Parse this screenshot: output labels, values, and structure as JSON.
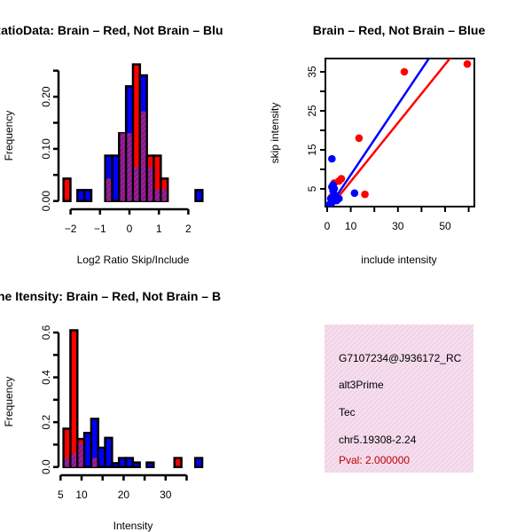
{
  "colors": {
    "red": "#ff0000",
    "blue": "#0000ff",
    "overlap": "#8b1a8b",
    "pval": "#bb0000",
    "panel_bg": "#f8d8ee"
  },
  "chart_data": [
    {
      "type": "bar",
      "title": "RatioData: Brain – Red, Not Brain – Blu",
      "xlabel": "Log2 Ratio Skip/Include",
      "ylabel": "Frequency",
      "xticks": [
        -2,
        -1,
        0,
        1,
        2
      ],
      "xtick_labels": [
        "−2",
        "−1",
        "0",
        "1",
        "2"
      ],
      "yticks": [
        0,
        0.05,
        0.1,
        0.15,
        0.2,
        0.25
      ],
      "ytick_labels": [
        "0.00",
        "",
        "0.10",
        "",
        "0.20",
        ""
      ],
      "bin_start": -2.24,
      "bin_width": 0.236,
      "series": [
        {
          "name": "Brain",
          "color": "red",
          "values": [
            0.043,
            0,
            0,
            0,
            0,
            0,
            0.043,
            0,
            0.13,
            0.13,
            0.262,
            0.172,
            0.087,
            0.087,
            0.043,
            0,
            0,
            0,
            0,
            0
          ]
        },
        {
          "name": "Not Brain",
          "color": "blue",
          "values": [
            0,
            0,
            0.021,
            0.021,
            0,
            0,
            0.087,
            0.087,
            0.13,
            0.22,
            0.065,
            0.241,
            0.065,
            0.022,
            0.022,
            0,
            0,
            0,
            0,
            0.021
          ]
        }
      ]
    },
    {
      "type": "scatter",
      "title": "Brain – Red, Not Brain – Blue",
      "xlabel": "include intensity",
      "ylabel": "skip intensity",
      "xlim": [
        -0.7,
        62
      ],
      "ylim": [
        0,
        38
      ],
      "xticks": [
        0,
        10,
        20,
        30,
        40,
        50,
        60
      ],
      "xtick_labels": [
        "0",
        "10",
        "",
        "30",
        "",
        "50",
        ""
      ],
      "yticks": [
        5,
        10,
        15,
        20,
        25,
        30,
        35
      ],
      "ytick_labels": [
        "5",
        "",
        "15",
        "",
        "25",
        "",
        "35"
      ],
      "series": [
        {
          "name": "Brain",
          "color": "red",
          "points": [
            [
              59.4,
              37
            ],
            [
              32.7,
              35
            ],
            [
              13.5,
              18
            ],
            [
              16,
              3.6
            ],
            [
              3,
              6.5
            ],
            [
              5,
              7
            ],
            [
              6,
              7.6
            ],
            [
              2,
              3
            ]
          ],
          "fit": {
            "slope": 0.75,
            "intercept": -0.6
          }
        },
        {
          "name": "Not Brain",
          "color": "blue",
          "points": [
            [
              2,
              12.7
            ],
            [
              11.6,
              3.9
            ],
            [
              2,
              5.5
            ],
            [
              2.5,
              4.5
            ],
            [
              3,
              3.5
            ],
            [
              1.5,
              2.5
            ],
            [
              2,
              1.5
            ],
            [
              4,
              2
            ],
            [
              1,
              1
            ],
            [
              3,
              5
            ],
            [
              5,
              2.5
            ],
            [
              2.5,
              6
            ]
          ],
          "fit": {
            "slope": 0.9,
            "intercept": -0.4
          }
        }
      ]
    },
    {
      "type": "bar",
      "title": "ne Itensity: Brain – Red, Not Brain – B",
      "xlabel": "Intensity",
      "ylabel": "Frequency",
      "xticks": [
        5,
        10,
        15,
        20,
        25,
        30,
        35
      ],
      "xtick_labels": [
        "5",
        "10",
        "",
        "20",
        "",
        "30",
        ""
      ],
      "yticks": [
        0,
        0.1,
        0.2,
        0.3,
        0.4,
        0.5,
        0.6
      ],
      "ytick_labels": [
        "0.0",
        "",
        "0.2",
        "",
        "0.4",
        "",
        "0.6"
      ],
      "bin_start": 5.7,
      "bin_width": 1.65,
      "series": [
        {
          "name": "Brain",
          "color": "red",
          "values": [
            0.171,
            0.61,
            0.125,
            0,
            0.04,
            0,
            0,
            0,
            0,
            0,
            0,
            0,
            0,
            0,
            0,
            0,
            0.04,
            0,
            0,
            0
          ]
        },
        {
          "name": "Not Brain",
          "color": "blue",
          "values": [
            0.04,
            0.06,
            0.105,
            0.152,
            0.215,
            0.086,
            0.13,
            0.017,
            0.04,
            0.04,
            0.02,
            0,
            0.02,
            0,
            0,
            0,
            0,
            0,
            0,
            0.04
          ]
        }
      ]
    }
  ],
  "info_panel": {
    "lines": [
      "G7107234@J936172_RC",
      "alt3Prime",
      "Tec",
      "chr5.19308-2.24"
    ],
    "pval": "Pval: 2.000000"
  }
}
